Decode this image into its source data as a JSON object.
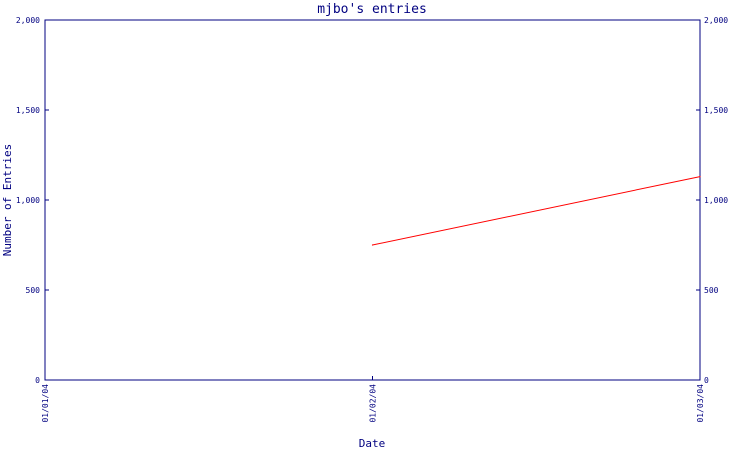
{
  "chart_data": {
    "type": "line",
    "title": "mjbo's entries",
    "xlabel": "Date",
    "ylabel": "Number of Entries",
    "x": [
      "01/02/04",
      "01/03/04"
    ],
    "x_ticks": [
      "01/01/04",
      "01/02/04",
      "01/03/04"
    ],
    "y_ticks": [
      "0",
      "500",
      "1,000",
      "1,500",
      "2,000"
    ],
    "series": [
      {
        "values": [
          750,
          1130
        ]
      }
    ],
    "ylim": [
      0,
      2000
    ],
    "y_axis_both_sides": true,
    "grid": false,
    "colors": {
      "axis": "#000080",
      "line": "#ff0000"
    }
  }
}
